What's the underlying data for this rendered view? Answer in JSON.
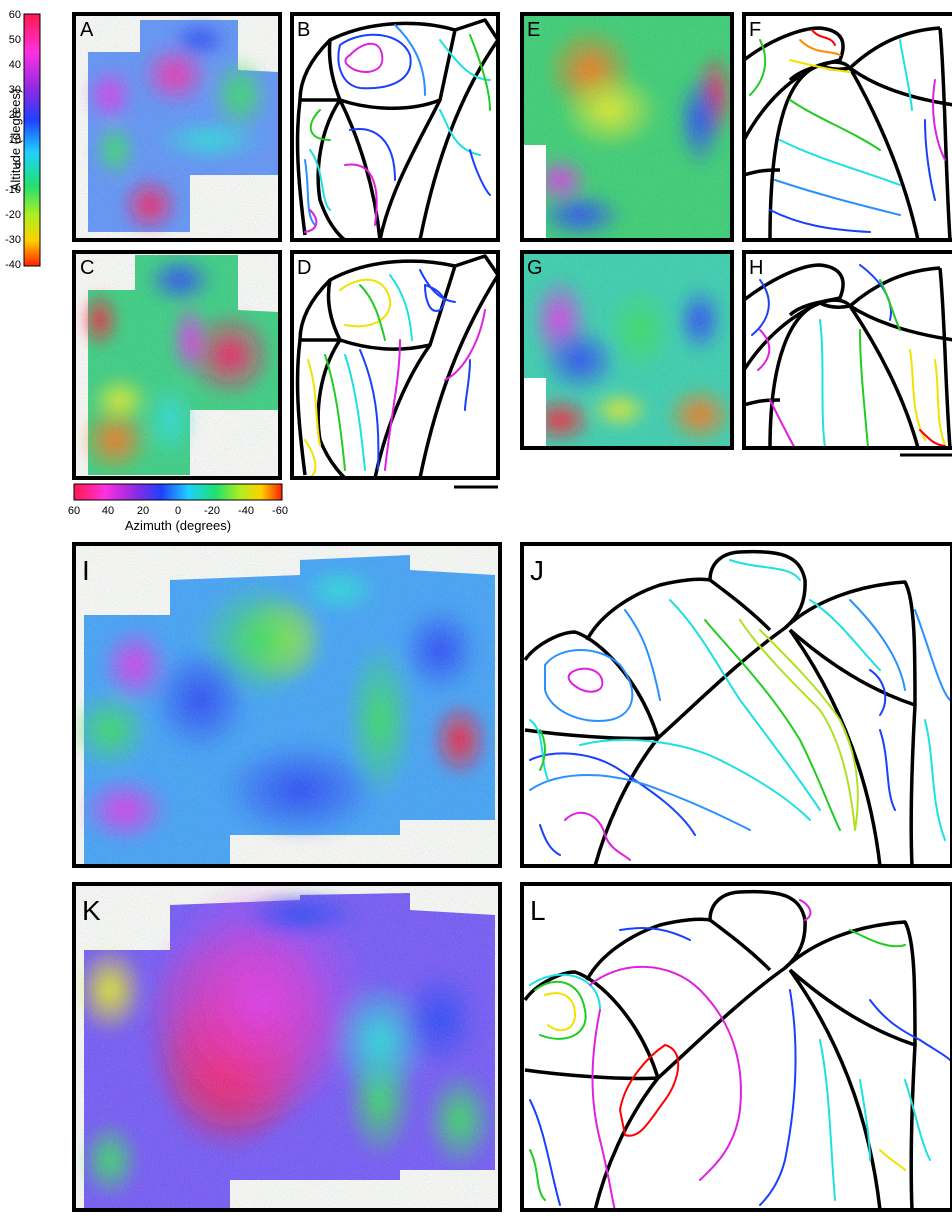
{
  "colorbars": {
    "altitude": {
      "label": "Altitude (degrees)",
      "ticks": [
        "60",
        "50",
        "40",
        "30",
        "20",
        "10",
        "0",
        "-10",
        "-20",
        "-30",
        "-40"
      ]
    },
    "azimuth": {
      "label": "Azimuth (degrees)",
      "ticks": [
        "60",
        "40",
        "20",
        "0",
        "-20",
        "-40",
        "-60"
      ]
    }
  },
  "panels": {
    "A": "A",
    "B": "B",
    "C": "C",
    "D": "D",
    "E": "E",
    "F": "F",
    "G": "G",
    "H": "H",
    "I": "I",
    "J": "J",
    "K": "K",
    "L": "L"
  },
  "colors": {
    "red": "#ff0000",
    "orange": "#ff8c00",
    "yellow": "#f2e200",
    "green": "#22cc22",
    "cyan": "#1ee0e0",
    "blue": "#1a40ff",
    "magenta": "#e020e0",
    "sky": "#2a90ff"
  }
}
